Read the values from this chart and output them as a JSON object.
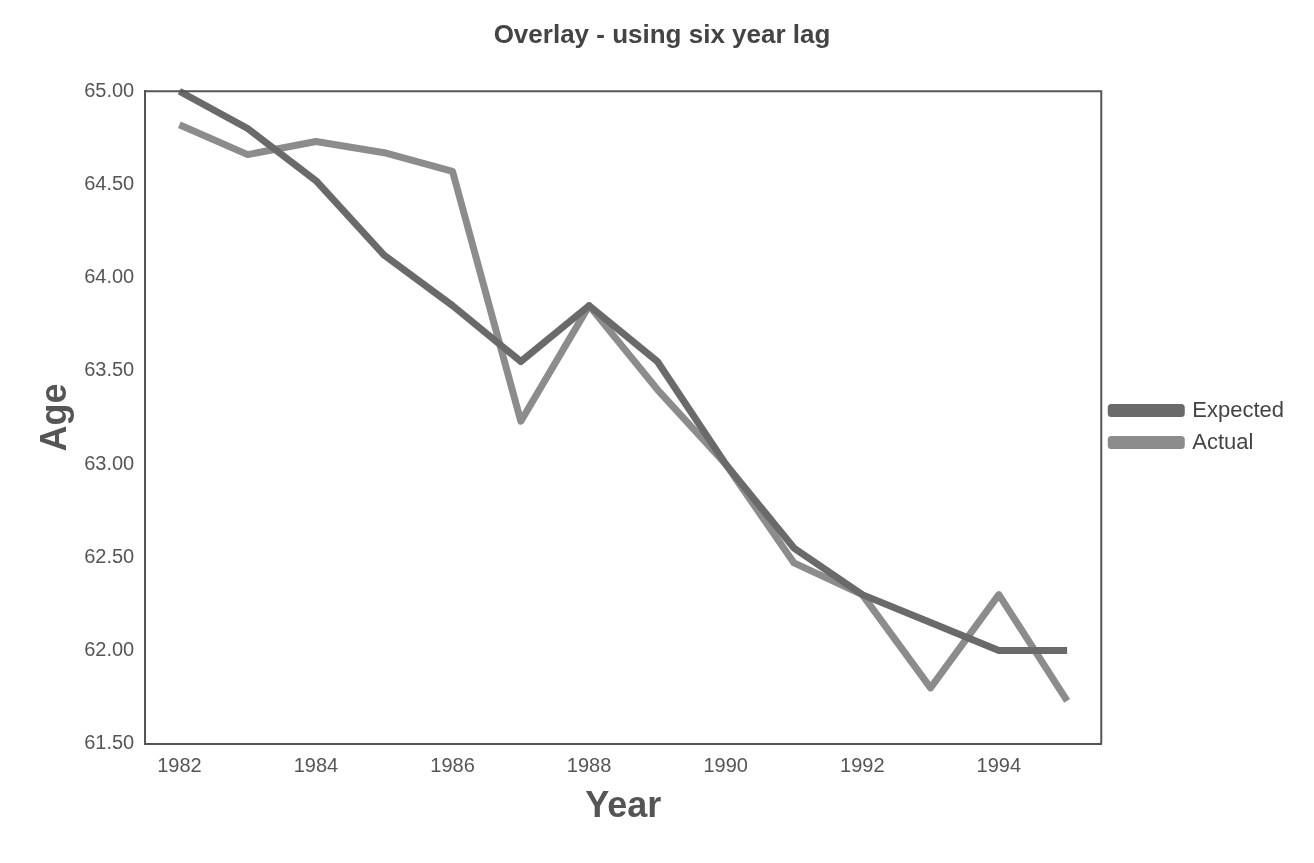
{
  "chart_data": {
    "type": "line",
    "title": "Overlay - using six year lag",
    "xlabel": "Year",
    "ylabel": "Age",
    "categories": [
      "1982",
      null,
      "1984",
      null,
      "1986",
      null,
      "1988",
      null,
      "1990",
      null,
      "1992",
      null,
      "1994",
      null
    ],
    "series": [
      {
        "name": "Expected",
        "color": "#6a6a6a",
        "values": [
          65.0,
          64.8,
          64.52,
          64.12,
          63.85,
          63.55,
          63.85,
          63.55,
          63.0,
          62.55,
          62.3,
          62.15,
          62.0,
          62.0
        ]
      },
      {
        "name": "Actual",
        "color": "#8c8c8c",
        "values": [
          64.82,
          64.66,
          64.73,
          64.67,
          64.57,
          63.23,
          63.85,
          63.4,
          63.0,
          62.47,
          62.3,
          61.8,
          62.3,
          61.73
        ]
      }
    ],
    "ylim": [
      61.5,
      65.0
    ],
    "yticks": [
      {
        "value": 61.5,
        "label": "61.50"
      },
      {
        "value": 62.0,
        "label": "62.00"
      },
      {
        "value": 62.5,
        "label": "62.50"
      },
      {
        "value": 63.0,
        "label": "63.00"
      },
      {
        "value": 63.5,
        "label": "63.50"
      },
      {
        "value": 64.0,
        "label": "64.00"
      },
      {
        "value": 64.5,
        "label": "64.50"
      },
      {
        "value": 65.0,
        "label": "65.00"
      }
    ],
    "grid": false,
    "legend": "right",
    "marker": "none",
    "line_style": "solid"
  }
}
